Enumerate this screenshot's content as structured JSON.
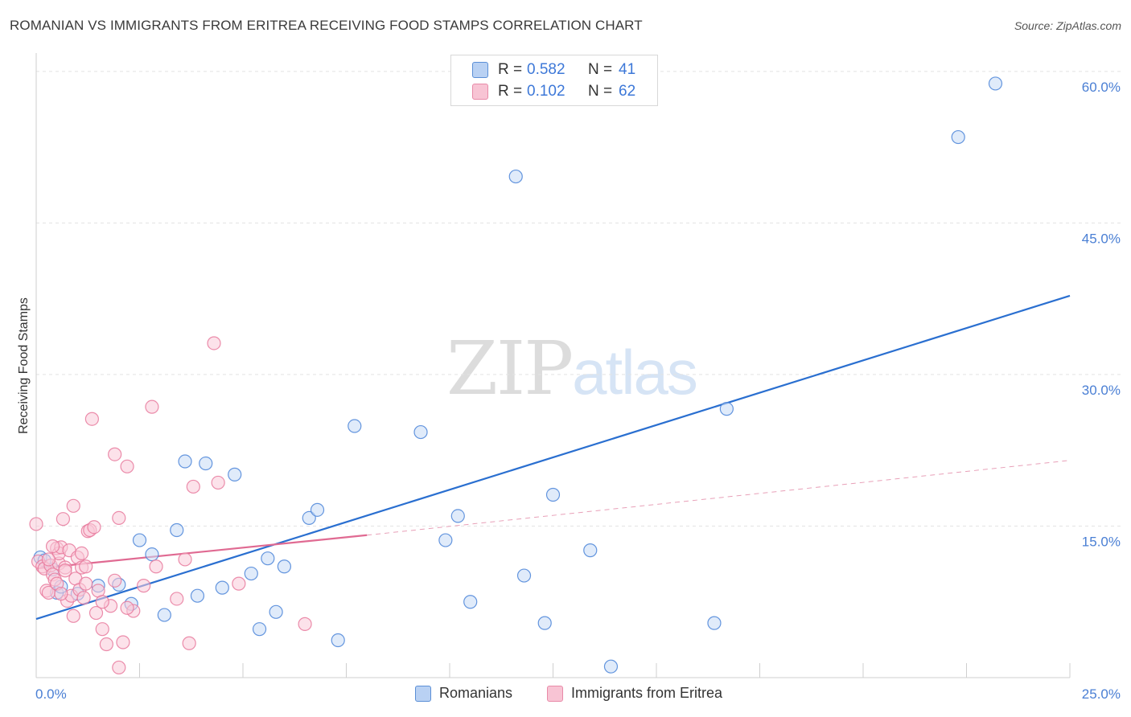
{
  "title": "ROMANIAN VS IMMIGRANTS FROM ERITREA RECEIVING FOOD STAMPS CORRELATION CHART",
  "source": "Source: ZipAtlas.com",
  "watermark": {
    "zip": "ZIP",
    "atlas": "atlas"
  },
  "legend": {
    "r_label": "R =",
    "n_label": "N =",
    "rows": [
      {
        "r": "0.582",
        "n": "41",
        "color": "#b9d1f3"
      },
      {
        "r": "0.102",
        "n": "62",
        "color": "#f8c4d4"
      }
    ]
  },
  "bottom_legend": [
    {
      "label": "Romanians",
      "color": "#b9d1f3",
      "edge": "#5b8fd6"
    },
    {
      "label": "Immigrants from Eritrea",
      "color": "#f8c4d4",
      "edge": "#e88aa8"
    }
  ],
  "chart_data": {
    "type": "scatter",
    "title": "ROMANIAN VS IMMIGRANTS FROM ERITREA RECEIVING FOOD STAMPS CORRELATION CHART",
    "xlabel": "",
    "ylabel": "Receiving Food Stamps",
    "xlim": [
      0,
      25
    ],
    "ylim": [
      0,
      61.5
    ],
    "x_tick_labels": [
      "0.0%",
      "25.0%"
    ],
    "y_ticks": [
      15,
      30,
      45,
      60
    ],
    "y_tick_labels": [
      "15.0%",
      "30.0%",
      "45.0%",
      "60.0%"
    ],
    "grid": true,
    "series": [
      {
        "name": "Romanians",
        "color": "#4a84d8",
        "fill": "#c6dbf5",
        "points": [
          [
            0.1,
            11.9
          ],
          [
            0.2,
            11.6
          ],
          [
            0.4,
            10.7
          ],
          [
            0.5,
            8.4
          ],
          [
            0.6,
            9.0
          ],
          [
            1.0,
            8.3
          ],
          [
            1.5,
            9.1
          ],
          [
            2.0,
            9.2
          ],
          [
            2.3,
            7.3
          ],
          [
            2.5,
            13.6
          ],
          [
            2.8,
            12.2
          ],
          [
            3.1,
            6.2
          ],
          [
            3.4,
            14.6
          ],
          [
            3.6,
            21.4
          ],
          [
            3.9,
            8.1
          ],
          [
            4.1,
            21.2
          ],
          [
            4.5,
            8.9
          ],
          [
            4.8,
            20.1
          ],
          [
            5.2,
            10.3
          ],
          [
            5.4,
            4.8
          ],
          [
            5.6,
            11.8
          ],
          [
            5.8,
            6.5
          ],
          [
            6.0,
            11.0
          ],
          [
            6.6,
            15.8
          ],
          [
            6.8,
            16.6
          ],
          [
            7.3,
            3.7
          ],
          [
            7.7,
            24.9
          ],
          [
            9.3,
            24.3
          ],
          [
            9.9,
            13.6
          ],
          [
            10.2,
            16.0
          ],
          [
            10.5,
            7.5
          ],
          [
            11.6,
            49.6
          ],
          [
            11.8,
            10.1
          ],
          [
            12.3,
            5.4
          ],
          [
            12.5,
            18.1
          ],
          [
            13.4,
            12.6
          ],
          [
            13.9,
            1.1
          ],
          [
            16.4,
            5.4
          ],
          [
            16.7,
            26.6
          ],
          [
            22.3,
            53.5
          ],
          [
            23.2,
            58.8
          ]
        ],
        "trend": [
          [
            0,
            5.8
          ],
          [
            25,
            37.8
          ]
        ]
      },
      {
        "name": "Immigrants from Eritrea",
        "color": "#e8799c",
        "fill": "#f9cbd9",
        "points": [
          [
            0.0,
            15.2
          ],
          [
            0.05,
            11.5
          ],
          [
            0.15,
            11.0
          ],
          [
            0.2,
            10.8
          ],
          [
            0.25,
            8.6
          ],
          [
            0.3,
            8.4
          ],
          [
            0.35,
            11.1
          ],
          [
            0.4,
            10.2
          ],
          [
            0.45,
            9.7
          ],
          [
            0.5,
            12.8
          ],
          [
            0.5,
            9.3
          ],
          [
            0.55,
            11.3
          ],
          [
            0.55,
            12.3
          ],
          [
            0.6,
            12.9
          ],
          [
            0.65,
            15.7
          ],
          [
            0.7,
            10.9
          ],
          [
            0.75,
            7.6
          ],
          [
            0.8,
            12.6
          ],
          [
            0.85,
            8.1
          ],
          [
            0.9,
            17.0
          ],
          [
            0.95,
            9.8
          ],
          [
            1.0,
            11.9
          ],
          [
            1.05,
            8.7
          ],
          [
            1.1,
            10.9
          ],
          [
            1.15,
            7.9
          ],
          [
            1.2,
            11.0
          ],
          [
            1.25,
            14.5
          ],
          [
            1.3,
            14.6
          ],
          [
            1.35,
            25.6
          ],
          [
            1.4,
            14.9
          ],
          [
            1.45,
            6.4
          ],
          [
            1.5,
            8.6
          ],
          [
            1.6,
            4.8
          ],
          [
            1.7,
            3.3
          ],
          [
            1.8,
            7.1
          ],
          [
            1.9,
            22.1
          ],
          [
            2.0,
            15.8
          ],
          [
            2.1,
            3.5
          ],
          [
            2.2,
            20.9
          ],
          [
            2.35,
            6.6
          ],
          [
            2.0,
            1.0
          ],
          [
            2.8,
            26.8
          ],
          [
            2.9,
            11.0
          ],
          [
            3.4,
            7.8
          ],
          [
            3.6,
            11.7
          ],
          [
            3.7,
            3.4
          ],
          [
            3.8,
            18.9
          ],
          [
            4.3,
            33.1
          ],
          [
            4.4,
            19.3
          ],
          [
            4.9,
            9.3
          ],
          [
            6.5,
            5.3
          ],
          [
            1.2,
            9.3
          ],
          [
            0.9,
            6.1
          ],
          [
            1.6,
            7.5
          ],
          [
            2.6,
            9.1
          ],
          [
            0.7,
            10.6
          ],
          [
            0.3,
            11.7
          ],
          [
            1.1,
            12.3
          ],
          [
            0.6,
            8.3
          ],
          [
            1.9,
            9.6
          ],
          [
            0.4,
            13.0
          ],
          [
            2.2,
            6.9
          ]
        ],
        "trend": [
          [
            0,
            10.8
          ],
          [
            8.0,
            14.1
          ]
        ],
        "trend_extension": [
          [
            8.0,
            14.1
          ],
          [
            25,
            21.5
          ]
        ]
      }
    ]
  }
}
